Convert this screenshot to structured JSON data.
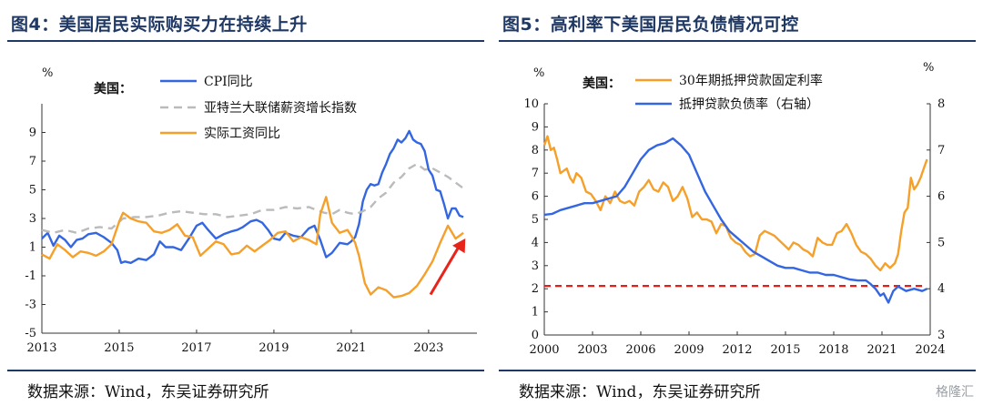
{
  "panels": [
    {
      "title": "图4：美国居民实际购买力在持续上升",
      "source": "数据来源：Wind，东吴证券研究所"
    },
    {
      "title": "图5：高利率下美国居民负债情况可控",
      "source": "数据来源：Wind，东吴证券研究所"
    }
  ],
  "watermark": "格隆汇",
  "chart_data": [
    {
      "type": "line",
      "group_label": "美国：",
      "ylabel": "%",
      "ylim": [
        -5,
        11
      ],
      "yticks": [
        -5,
        -3,
        -1,
        1,
        3,
        5,
        7,
        9
      ],
      "x_ticks": [
        "2013",
        "2015",
        "2017",
        "2019",
        "2021",
        "2023"
      ],
      "xlim": [
        2013.0,
        2024.25
      ],
      "grid": false,
      "legend_position": "top-center",
      "colors": {
        "cpi": "#3366e0",
        "atlanta": "#bbbbbb",
        "real_wage": "#f5a02a",
        "arrow": "#e8241a"
      },
      "series": [
        {
          "name": "CPI同比",
          "key": "cpi",
          "style": "solid",
          "x": [
            2013.0,
            2013.15,
            2013.3,
            2013.45,
            2013.6,
            2013.75,
            2013.9,
            2014.05,
            2014.2,
            2014.4,
            2014.6,
            2014.8,
            2014.95,
            2015.05,
            2015.15,
            2015.3,
            2015.5,
            2015.7,
            2015.9,
            2016.05,
            2016.2,
            2016.4,
            2016.6,
            2016.8,
            2017.0,
            2017.15,
            2017.3,
            2017.5,
            2017.7,
            2017.9,
            2018.05,
            2018.2,
            2018.4,
            2018.55,
            2018.7,
            2018.85,
            2019.0,
            2019.15,
            2019.3,
            2019.5,
            2019.7,
            2019.9,
            2020.05,
            2020.2,
            2020.35,
            2020.5,
            2020.7,
            2020.9,
            2021.0,
            2021.1,
            2021.2,
            2021.3,
            2021.4,
            2021.5,
            2021.6,
            2021.7,
            2021.8,
            2021.9,
            2022.0,
            2022.1,
            2022.2,
            2022.3,
            2022.4,
            2022.5,
            2022.6,
            2022.7,
            2022.8,
            2022.9,
            2023.0,
            2023.1,
            2023.2,
            2023.3,
            2023.4,
            2023.5,
            2023.6,
            2023.7,
            2023.8,
            2023.9
          ],
          "values": [
            1.6,
            2.0,
            1.1,
            1.8,
            1.5,
            1.0,
            1.5,
            1.6,
            1.9,
            2.0,
            1.7,
            1.3,
            0.8,
            -0.1,
            0.0,
            -0.1,
            0.2,
            0.1,
            0.5,
            1.4,
            1.0,
            1.0,
            0.8,
            1.6,
            2.5,
            2.7,
            2.2,
            1.6,
            1.9,
            2.1,
            2.2,
            2.4,
            2.8,
            2.9,
            2.7,
            2.2,
            1.6,
            1.5,
            2.0,
            1.8,
            1.7,
            2.3,
            2.5,
            1.5,
            0.3,
            0.6,
            1.3,
            1.2,
            1.4,
            1.7,
            2.6,
            4.2,
            5.0,
            5.4,
            5.3,
            5.4,
            6.2,
            6.8,
            7.5,
            7.9,
            8.5,
            8.3,
            8.6,
            9.1,
            8.5,
            8.3,
            8.2,
            7.7,
            6.4,
            6.0,
            5.0,
            4.9,
            4.0,
            3.0,
            3.7,
            3.7,
            3.2,
            3.1
          ]
        },
        {
          "name": "亚特兰大联储薪资增长指数",
          "key": "atlanta",
          "style": "dashed",
          "x": [
            2013.0,
            2013.3,
            2013.6,
            2013.9,
            2014.2,
            2014.5,
            2014.8,
            2015.1,
            2015.4,
            2015.7,
            2016.0,
            2016.3,
            2016.6,
            2016.9,
            2017.2,
            2017.5,
            2017.8,
            2018.1,
            2018.4,
            2018.7,
            2019.0,
            2019.3,
            2019.6,
            2019.9,
            2020.1,
            2020.3,
            2020.5,
            2020.7,
            2020.9,
            2021.1,
            2021.3,
            2021.5,
            2021.7,
            2021.9,
            2022.1,
            2022.3,
            2022.5,
            2022.7,
            2022.9,
            2023.1,
            2023.3,
            2023.5,
            2023.7,
            2023.9
          ],
          "values": [
            2.2,
            2.0,
            2.2,
            2.0,
            2.3,
            2.4,
            2.3,
            3.0,
            3.1,
            3.1,
            3.2,
            3.4,
            3.5,
            3.4,
            3.3,
            3.3,
            3.1,
            3.2,
            3.3,
            3.6,
            3.6,
            3.8,
            3.7,
            3.8,
            3.6,
            3.4,
            3.3,
            3.6,
            3.4,
            3.3,
            3.5,
            3.8,
            4.4,
            4.8,
            5.5,
            5.9,
            6.5,
            6.8,
            6.4,
            6.5,
            6.2,
            5.9,
            5.5,
            5.1
          ]
        },
        {
          "name": "实际工资同比",
          "key": "real_wage",
          "style": "solid",
          "x": [
            2013.0,
            2013.2,
            2013.4,
            2013.6,
            2013.8,
            2014.0,
            2014.2,
            2014.4,
            2014.6,
            2014.8,
            2015.0,
            2015.1,
            2015.3,
            2015.5,
            2015.7,
            2015.9,
            2016.1,
            2016.3,
            2016.5,
            2016.7,
            2016.9,
            2017.1,
            2017.3,
            2017.5,
            2017.7,
            2017.9,
            2018.1,
            2018.3,
            2018.5,
            2018.7,
            2018.9,
            2019.1,
            2019.3,
            2019.5,
            2019.7,
            2019.9,
            2020.1,
            2020.2,
            2020.35,
            2020.5,
            2020.7,
            2020.9,
            2021.0,
            2021.1,
            2021.2,
            2021.35,
            2021.5,
            2021.7,
            2021.9,
            2022.1,
            2022.3,
            2022.5,
            2022.7,
            2022.9,
            2023.1,
            2023.3,
            2023.5,
            2023.7,
            2023.9
          ],
          "values": [
            0.5,
            0.2,
            1.2,
            0.8,
            0.3,
            0.7,
            0.6,
            0.4,
            0.7,
            1.2,
            2.8,
            3.4,
            3.0,
            2.8,
            2.7,
            2.1,
            2.0,
            2.2,
            2.6,
            1.8,
            1.7,
            0.4,
            0.9,
            1.4,
            1.2,
            0.5,
            0.6,
            1.1,
            0.7,
            1.1,
            1.5,
            2.0,
            2.1,
            1.4,
            1.7,
            1.5,
            1.2,
            3.3,
            4.5,
            2.7,
            2.0,
            2.2,
            1.8,
            1.3,
            0.4,
            -1.5,
            -2.3,
            -1.8,
            -2.0,
            -2.5,
            -2.4,
            -2.2,
            -1.7,
            -0.9,
            0.0,
            1.3,
            2.5,
            1.6,
            2.0
          ]
        }
      ],
      "arrow": {
        "from": [
          2023.05,
          -2.3
        ],
        "to": [
          2023.95,
          1.6
        ]
      }
    },
    {
      "type": "line",
      "group_label": "美国：",
      "ylabel": "%",
      "ylabel_right": "%",
      "ylim": [
        0,
        10
      ],
      "yticks": [
        0,
        1,
        2,
        3,
        4,
        5,
        6,
        7,
        8,
        9,
        10
      ],
      "ylim_right": [
        3,
        8
      ],
      "yticks_right": [
        3,
        4,
        5,
        6,
        7,
        8
      ],
      "x_ticks": [
        "2000",
        "2003",
        "2006",
        "2009",
        "2012",
        "2015",
        "2018",
        "2021",
        "2024"
      ],
      "xlim": [
        2000,
        2024
      ],
      "grid": false,
      "legend_position": "top-center",
      "colors": {
        "mortgage_rate": "#f5a02a",
        "debt_ratio": "#3366e0",
        "ref_line": "#e0201b"
      },
      "reference_line": {
        "axis": "left",
        "value": 2.12,
        "from": 2000,
        "to": 2023.7
      },
      "series": [
        {
          "name": "30年期抵押贷款固定利率",
          "key": "mortgage_rate",
          "axis": "left",
          "x": [
            2000.0,
            2000.2,
            2000.4,
            2000.6,
            2000.8,
            2001.0,
            2001.2,
            2001.4,
            2001.6,
            2001.8,
            2002.0,
            2002.3,
            2002.6,
            2002.9,
            2003.2,
            2003.5,
            2003.8,
            2004.1,
            2004.4,
            2004.7,
            2005.0,
            2005.3,
            2005.6,
            2005.9,
            2006.2,
            2006.5,
            2006.8,
            2007.1,
            2007.4,
            2007.7,
            2008.0,
            2008.3,
            2008.6,
            2008.9,
            2009.2,
            2009.5,
            2009.8,
            2010.1,
            2010.4,
            2010.7,
            2011.0,
            2011.3,
            2011.6,
            2011.9,
            2012.2,
            2012.5,
            2012.8,
            2013.1,
            2013.4,
            2013.7,
            2014.0,
            2014.3,
            2014.6,
            2014.9,
            2015.2,
            2015.5,
            2015.8,
            2016.1,
            2016.4,
            2016.7,
            2017.0,
            2017.3,
            2017.6,
            2017.9,
            2018.2,
            2018.5,
            2018.8,
            2019.1,
            2019.4,
            2019.7,
            2020.0,
            2020.3,
            2020.6,
            2020.9,
            2021.2,
            2021.5,
            2021.8,
            2022.0,
            2022.2,
            2022.4,
            2022.6,
            2022.8,
            2023.0,
            2023.2,
            2023.4,
            2023.6,
            2023.8
          ],
          "values": [
            8.2,
            8.6,
            8.0,
            8.1,
            7.6,
            7.0,
            7.1,
            7.2,
            6.8,
            6.6,
            7.0,
            6.8,
            6.2,
            6.1,
            5.8,
            5.4,
            6.0,
            5.7,
            6.2,
            5.8,
            5.7,
            5.8,
            5.6,
            6.2,
            6.4,
            6.7,
            6.3,
            6.2,
            6.6,
            6.4,
            5.8,
            6.0,
            6.4,
            5.9,
            5.1,
            5.3,
            5.0,
            5.0,
            4.9,
            4.4,
            4.8,
            4.7,
            4.2,
            4.0,
            3.9,
            3.6,
            3.4,
            3.5,
            4.3,
            4.5,
            4.4,
            4.3,
            4.1,
            3.9,
            3.7,
            4.0,
            3.9,
            3.7,
            3.6,
            3.4,
            4.2,
            4.0,
            3.9,
            3.9,
            4.4,
            4.5,
            4.8,
            4.4,
            3.9,
            3.6,
            3.5,
            3.3,
            3.0,
            2.8,
            3.1,
            2.9,
            3.1,
            3.5,
            4.5,
            5.3,
            5.5,
            6.8,
            6.3,
            6.5,
            6.8,
            7.2,
            7.6
          ]
        },
        {
          "name": "抵押贷款负债率（右轴）",
          "key": "debt_ratio",
          "axis": "right",
          "x": [
            2000.0,
            2000.5,
            2001.0,
            2001.5,
            2002.0,
            2002.5,
            2003.0,
            2003.5,
            2004.0,
            2004.5,
            2005.0,
            2005.5,
            2006.0,
            2006.5,
            2007.0,
            2007.5,
            2008.0,
            2008.5,
            2009.0,
            2009.5,
            2010.0,
            2010.5,
            2011.0,
            2011.5,
            2012.0,
            2012.5,
            2013.0,
            2013.5,
            2014.0,
            2014.5,
            2015.0,
            2015.5,
            2016.0,
            2016.5,
            2017.0,
            2017.5,
            2018.0,
            2018.5,
            2019.0,
            2019.5,
            2020.0,
            2020.3,
            2020.6,
            2020.9,
            2021.1,
            2021.4,
            2021.7,
            2022.0,
            2022.5,
            2023.0,
            2023.5,
            2023.8
          ],
          "values": [
            5.6,
            5.62,
            5.7,
            5.75,
            5.8,
            5.85,
            5.85,
            5.9,
            5.95,
            6.0,
            6.2,
            6.5,
            6.8,
            7.0,
            7.1,
            7.15,
            7.25,
            7.1,
            6.9,
            6.5,
            6.1,
            5.8,
            5.5,
            5.25,
            5.1,
            4.95,
            4.8,
            4.7,
            4.6,
            4.5,
            4.45,
            4.45,
            4.4,
            4.35,
            4.35,
            4.3,
            4.3,
            4.25,
            4.2,
            4.18,
            4.18,
            4.1,
            4.0,
            3.85,
            3.9,
            3.7,
            3.95,
            4.05,
            3.95,
            4.0,
            3.95,
            4.0
          ]
        }
      ]
    }
  ]
}
